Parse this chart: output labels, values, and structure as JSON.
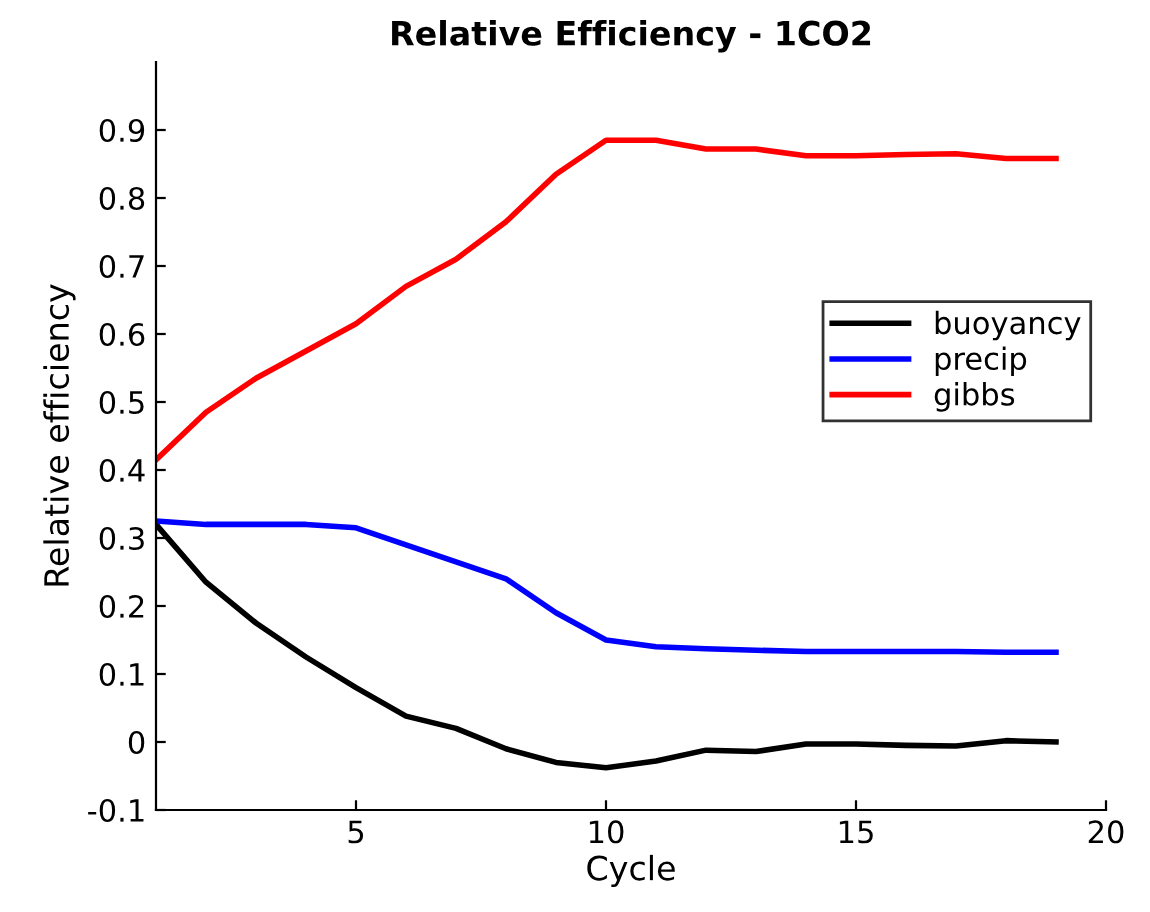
{
  "chart_data": {
    "type": "line",
    "title": "Relative Efficiency - 1CO2",
    "xlabel": "Cycle",
    "ylabel": "Relative efficiency",
    "x": [
      1,
      2,
      3,
      4,
      5,
      6,
      7,
      8,
      9,
      10,
      11,
      12,
      13,
      14,
      15,
      16,
      17,
      18,
      19
    ],
    "series": [
      {
        "name": "buoyancy",
        "color": "#000000",
        "values": [
          0.32,
          0.235,
          0.175,
          0.125,
          0.08,
          0.038,
          0.02,
          -0.01,
          -0.03,
          -0.038,
          -0.028,
          -0.012,
          -0.014,
          -0.003,
          -0.003,
          -0.005,
          -0.006,
          0.002,
          0.0
        ]
      },
      {
        "name": "precip",
        "color": "#0000ff",
        "values": [
          0.325,
          0.32,
          0.32,
          0.32,
          0.315,
          0.29,
          0.265,
          0.24,
          0.19,
          0.15,
          0.14,
          0.137,
          0.135,
          0.133,
          0.133,
          0.133,
          0.133,
          0.132,
          0.132
        ]
      },
      {
        "name": "gibbs",
        "color": "#ff0000",
        "values": [
          0.415,
          0.485,
          0.535,
          0.575,
          0.615,
          0.67,
          0.71,
          0.765,
          0.835,
          0.885,
          0.885,
          0.872,
          0.872,
          0.862,
          0.862,
          0.864,
          0.865,
          0.858,
          0.858
        ]
      }
    ],
    "xlim": [
      1,
      20
    ],
    "xticks": [
      5,
      10,
      15,
      20
    ],
    "ylim": [
      -0.1,
      1.0
    ],
    "yticks": [
      -0.1,
      0,
      0.1,
      0.2,
      0.3,
      0.4,
      0.5,
      0.6,
      0.7,
      0.8,
      0.9
    ],
    "grid": false,
    "legend": "right",
    "marker": "none",
    "line_style": "solid"
  }
}
